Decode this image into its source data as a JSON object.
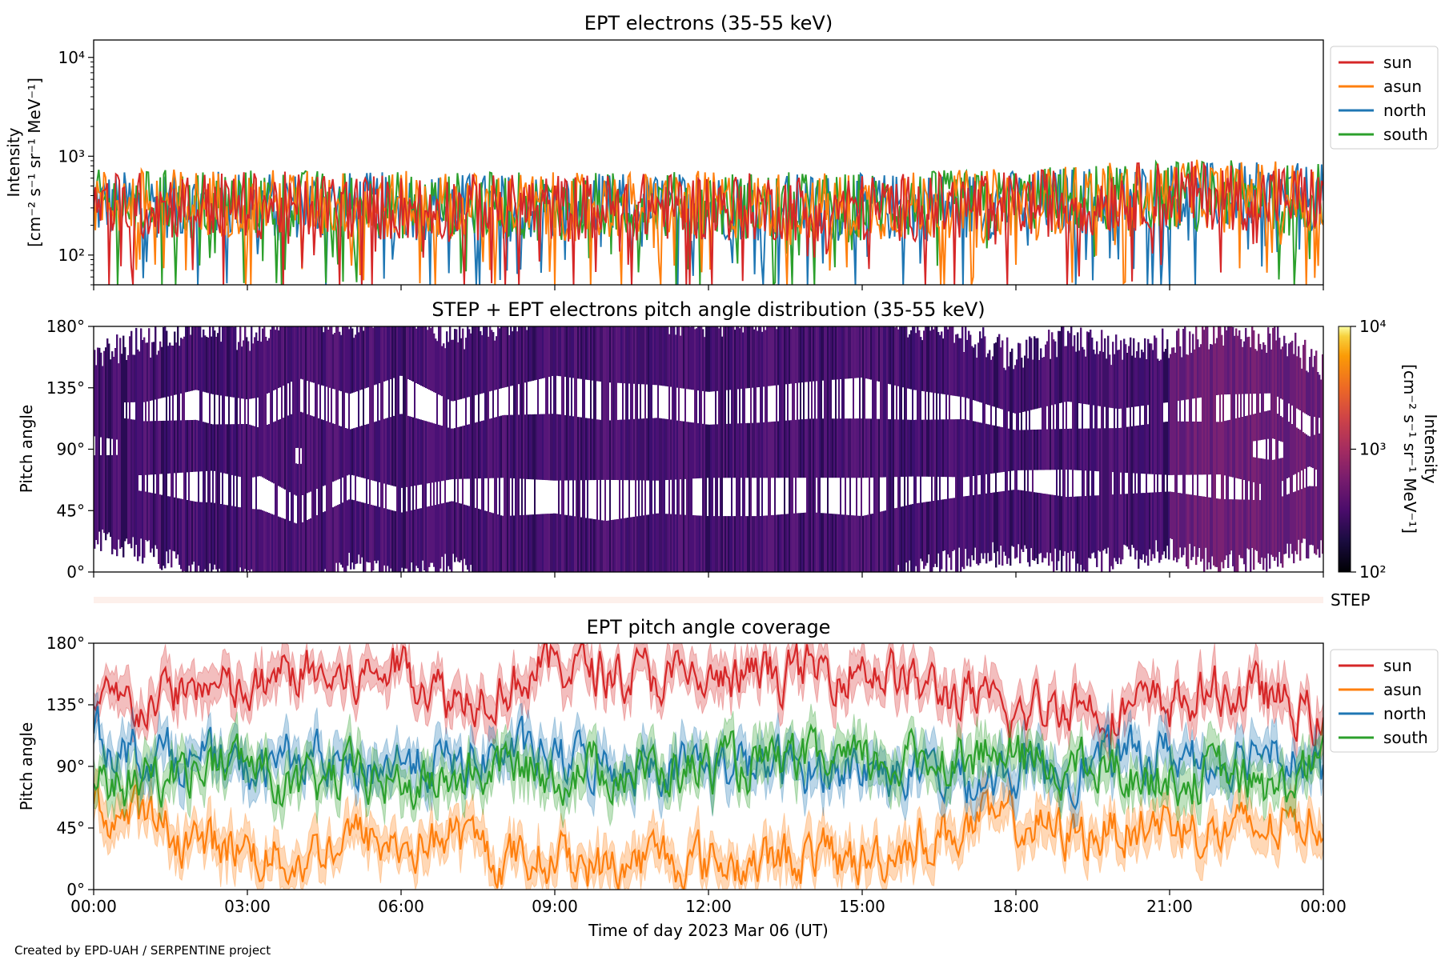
{
  "footer": {
    "credit": "Created by EPD-UAH / SERPENTINE project"
  },
  "colors": {
    "sun": "#d62728",
    "asun": "#ff7f0e",
    "north": "#1f77b4",
    "south": "#2ca02c",
    "step_bar": "#fdf0eb"
  },
  "chart_data": [
    {
      "id": "intensity",
      "type": "line",
      "title": "EPT electrons (35-55 keV)",
      "ylabel": [
        "Intensity",
        "[cm⁻² s⁻¹ sr⁻¹ MeV⁻¹]"
      ],
      "yscale": "log",
      "ylim": [
        50,
        15000
      ],
      "y_ticks": [
        {
          "value": 100,
          "label": "10²"
        },
        {
          "value": 1000,
          "label": "10³"
        },
        {
          "value": 10000,
          "label": "10⁴"
        }
      ],
      "xlim": [
        "2023-03-06 00:00",
        "2023-03-07 00:00"
      ],
      "legend": {
        "position": "outside-right",
        "entries": [
          "sun",
          "asun",
          "north",
          "south"
        ]
      },
      "grid": false,
      "series": [
        {
          "name": "north",
          "x": [
            "00:00",
            "03:00",
            "06:00",
            "09:00",
            "12:00",
            "15:00",
            "18:00",
            "21:00",
            "00:00"
          ],
          "values": [
            320,
            330,
            310,
            300,
            310,
            300,
            330,
            400,
            380
          ]
        },
        {
          "name": "south",
          "x": [
            "00:00",
            "03:00",
            "06:00",
            "09:00",
            "12:00",
            "15:00",
            "18:00",
            "21:00",
            "00:00"
          ],
          "values": [
            330,
            340,
            320,
            310,
            320,
            310,
            340,
            420,
            390
          ]
        },
        {
          "name": "asun",
          "x": [
            "00:00",
            "03:00",
            "06:00",
            "09:00",
            "12:00",
            "15:00",
            "18:00",
            "21:00",
            "00:00"
          ],
          "values": [
            340,
            340,
            320,
            310,
            320,
            310,
            340,
            420,
            390
          ]
        },
        {
          "name": "sun",
          "x": [
            "00:00",
            "03:00",
            "06:00",
            "09:00",
            "12:00",
            "15:00",
            "18:00",
            "21:00",
            "00:00"
          ],
          "values": [
            320,
            320,
            300,
            300,
            310,
            300,
            320,
            410,
            370
          ]
        }
      ]
    },
    {
      "id": "pad",
      "type": "heatmap",
      "title": "STEP + EPT electrons pitch angle distribution (35-55 keV)",
      "ylabel": "Pitch angle",
      "ylim": [
        0,
        180
      ],
      "y_ticks": [
        "0°",
        "45°",
        "90°",
        "135°",
        "180°"
      ],
      "xlim": [
        "2023-03-06 00:00",
        "2023-03-07 00:00"
      ],
      "colorbar": {
        "label": [
          "Intensity",
          "[cm⁻² s⁻¹ sr⁻¹ MeV⁻¹]"
        ],
        "scale": "log",
        "range": [
          100,
          10000
        ],
        "ticks": [
          {
            "value": 100,
            "label": "10²"
          },
          {
            "value": 1000,
            "label": "10³"
          },
          {
            "value": 10000,
            "label": "10⁴"
          }
        ],
        "colormap": "inferno"
      }
    },
    {
      "id": "step",
      "type": "heatmap",
      "label": "STEP"
    },
    {
      "id": "coverage",
      "type": "line",
      "title": "EPT pitch angle coverage",
      "ylabel": "Pitch angle",
      "ylim": [
        0,
        180
      ],
      "y_ticks": [
        "0°",
        "45°",
        "90°",
        "135°",
        "180°"
      ],
      "xlabel": "Time of day 2023 Mar 06 (UT)",
      "x_ticks": [
        "00:00",
        "03:00",
        "06:00",
        "09:00",
        "12:00",
        "15:00",
        "18:00",
        "21:00",
        "00:00"
      ],
      "xlim": [
        "2023-03-06 00:00",
        "2023-03-07 00:00"
      ],
      "legend": {
        "position": "outside-right",
        "entries": [
          "sun",
          "asun",
          "north",
          "south"
        ]
      },
      "grid": false,
      "series": [
        {
          "name": "sun",
          "x": [
            "00:00",
            "01:00",
            "02:00",
            "03:00",
            "04:00",
            "05:00",
            "06:00",
            "07:00",
            "08:00",
            "09:00",
            "10:00",
            "11:00",
            "12:00",
            "13:00",
            "14:00",
            "15:00",
            "16:00",
            "17:00",
            "18:00",
            "19:00",
            "20:00",
            "21:00",
            "22:00",
            "23:00",
            "00:00"
          ],
          "values": [
            130,
            135,
            150,
            140,
            160,
            150,
            165,
            140,
            150,
            165,
            160,
            155,
            150,
            155,
            160,
            165,
            150,
            140,
            125,
            140,
            130,
            135,
            145,
            140,
            120
          ]
        },
        {
          "name": "asun",
          "x": [
            "00:00",
            "01:00",
            "02:00",
            "03:00",
            "04:00",
            "05:00",
            "06:00",
            "07:00",
            "08:00",
            "09:00",
            "10:00",
            "11:00",
            "12:00",
            "13:00",
            "14:00",
            "15:00",
            "16:00",
            "17:00",
            "18:00",
            "19:00",
            "20:00",
            "21:00",
            "22:00",
            "23:00",
            "00:00"
          ],
          "values": [
            60,
            50,
            35,
            30,
            20,
            40,
            30,
            40,
            20,
            25,
            15,
            25,
            20,
            20,
            25,
            20,
            35,
            45,
            50,
            40,
            45,
            50,
            40,
            45,
            55
          ]
        },
        {
          "name": "north",
          "x": [
            "00:00",
            "01:00",
            "02:00",
            "03:00",
            "04:00",
            "05:00",
            "06:00",
            "07:00",
            "08:00",
            "09:00",
            "10:00",
            "11:00",
            "12:00",
            "13:00",
            "14:00",
            "15:00",
            "16:00",
            "17:00",
            "18:00",
            "19:00",
            "20:00",
            "21:00",
            "22:00",
            "23:00",
            "00:00"
          ],
          "values": [
            110,
            100,
            95,
            85,
            100,
            85,
            95,
            90,
            100,
            95,
            90,
            95,
            90,
            90,
            88,
            90,
            85,
            80,
            85,
            90,
            95,
            100,
            95,
            110,
            80
          ]
        },
        {
          "name": "south",
          "x": [
            "00:00",
            "01:00",
            "02:00",
            "03:00",
            "04:00",
            "05:00",
            "06:00",
            "07:00",
            "08:00",
            "09:00",
            "10:00",
            "11:00",
            "12:00",
            "13:00",
            "14:00",
            "15:00",
            "16:00",
            "17:00",
            "18:00",
            "19:00",
            "20:00",
            "21:00",
            "22:00",
            "23:00",
            "00:00"
          ],
          "values": [
            75,
            80,
            90,
            95,
            70,
            85,
            75,
            80,
            90,
            85,
            90,
            85,
            90,
            90,
            92,
            90,
            95,
            100,
            95,
            90,
            85,
            80,
            85,
            70,
            95
          ]
        }
      ]
    }
  ]
}
